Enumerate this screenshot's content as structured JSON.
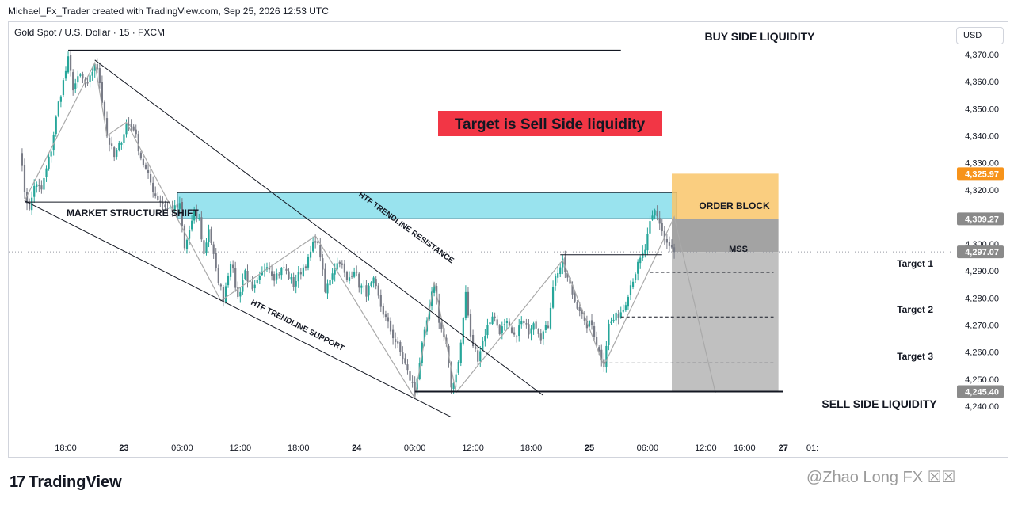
{
  "header": {
    "attribution": "Michael_Fx_Trader created with TradingView.com, Sep 25, 2026 12:53 UTC",
    "symbol": "Gold Spot / U.S. Dollar · 15 · FXCM",
    "currency": "USD"
  },
  "footer": {
    "brand": "TradingView",
    "watermark": "@Zhao Long FX ☒☒"
  },
  "colors": {
    "up": "#26a69a",
    "down": "#787b86",
    "order_block": "#7fdcea",
    "target_box": "#f9c66a",
    "stop_box": "#9e9e9e",
    "sell_box": "#bdbdbd",
    "headline_bg": "#f23645",
    "badge_orange": "#f7931a",
    "badge_gray": "#8a8a8a"
  },
  "chart_data": {
    "type": "candlestick",
    "instrument": "Gold Spot / U.S. Dollar",
    "timeframe": "15",
    "ylim": [
      4236,
      4378
    ],
    "y_ticks": [
      4240,
      4250,
      4260,
      4270,
      4280,
      4290,
      4300,
      4310,
      4320,
      4330,
      4340,
      4350,
      4360,
      4370
    ],
    "y_tick_labels": [
      "4,240.00",
      "4,250.00",
      "4,260.00",
      "4,270.00",
      "4,280.00",
      "4,290.00",
      "4,300.00",
      "4,310.00",
      "4,320.00",
      "4,330.00",
      "4,340.00",
      "4,350.00",
      "4,360.00",
      "4,370.00"
    ],
    "x_ticks": [
      {
        "label": "18:00",
        "bar": 0
      },
      {
        "label": "23",
        "bar": 24
      },
      {
        "label": "06:00",
        "bar": 48
      },
      {
        "label": "12:00",
        "bar": 72
      },
      {
        "label": "18:00",
        "bar": 96
      },
      {
        "label": "24",
        "bar": 120
      },
      {
        "label": "06:00",
        "bar": 144
      },
      {
        "label": "12:00",
        "bar": 168
      },
      {
        "label": "18:00",
        "bar": 192
      },
      {
        "label": "25",
        "bar": 216
      },
      {
        "label": "06:00",
        "bar": 240
      },
      {
        "label": "12:00",
        "bar": 264
      },
      {
        "label": "16:00",
        "bar": 280
      },
      {
        "label": "27",
        "bar": 296
      },
      {
        "label": "01:",
        "bar": 308
      }
    ],
    "price_badges": [
      {
        "value": "4,325.97",
        "price": 4325.97,
        "style": "orange"
      },
      {
        "value": "4,309.27",
        "price": 4309.27,
        "style": "gray"
      },
      {
        "value": "4,297.07",
        "price": 4297.07,
        "style": "gray"
      },
      {
        "value": "4,245.40",
        "price": 4245.4,
        "style": "gray"
      }
    ],
    "current_price": 4297.07,
    "waypoints": [
      [
        -19,
        4335
      ],
      [
        -17,
        4320
      ],
      [
        -15,
        4312
      ],
      [
        -13,
        4322
      ],
      [
        -10,
        4320
      ],
      [
        -6,
        4335
      ],
      [
        -3,
        4352
      ],
      [
        -1,
        4360
      ],
      [
        1,
        4368
      ],
      [
        3,
        4358
      ],
      [
        6,
        4362
      ],
      [
        9,
        4358
      ],
      [
        12,
        4367
      ],
      [
        14,
        4360
      ],
      [
        17,
        4340
      ],
      [
        20,
        4332
      ],
      [
        22,
        4336
      ],
      [
        25,
        4344
      ],
      [
        28,
        4343
      ],
      [
        31,
        4332
      ],
      [
        34,
        4325
      ],
      [
        37,
        4318
      ],
      [
        40,
        4315
      ],
      [
        42,
        4313
      ],
      [
        45,
        4313
      ],
      [
        47,
        4314
      ],
      [
        49,
        4298
      ],
      [
        51,
        4305
      ],
      [
        53,
        4311
      ],
      [
        55,
        4309
      ],
      [
        57,
        4296
      ],
      [
        59,
        4306
      ],
      [
        62,
        4290
      ],
      [
        65,
        4280
      ],
      [
        68,
        4294
      ],
      [
        71,
        4280
      ],
      [
        74,
        4290
      ],
      [
        77,
        4282
      ],
      [
        80,
        4287
      ],
      [
        83,
        4293
      ],
      [
        86,
        4288
      ],
      [
        90,
        4291
      ],
      [
        94,
        4285
      ],
      [
        97,
        4290
      ],
      [
        100,
        4294
      ],
      [
        103,
        4302
      ],
      [
        105,
        4296
      ],
      [
        107,
        4282
      ],
      [
        110,
        4290
      ],
      [
        113,
        4294
      ],
      [
        116,
        4286
      ],
      [
        119,
        4291
      ],
      [
        121,
        4285
      ],
      [
        124,
        4282
      ],
      [
        127,
        4286
      ],
      [
        130,
        4277
      ],
      [
        133,
        4270
      ],
      [
        136,
        4264
      ],
      [
        139,
        4258
      ],
      [
        142,
        4250
      ],
      [
        144,
        4246
      ],
      [
        147,
        4262
      ],
      [
        150,
        4276
      ],
      [
        152,
        4286
      ],
      [
        154,
        4272
      ],
      [
        157,
        4262
      ],
      [
        159,
        4247
      ],
      [
        161,
        4252
      ],
      [
        163,
        4263
      ],
      [
        165,
        4282
      ],
      [
        167,
        4265
      ],
      [
        170,
        4258
      ],
      [
        173,
        4267
      ],
      [
        176,
        4274
      ],
      [
        179,
        4268
      ],
      [
        182,
        4270
      ],
      [
        185,
        4265
      ],
      [
        188,
        4271
      ],
      [
        191,
        4268
      ],
      [
        193,
        4272
      ],
      [
        196,
        4266
      ],
      [
        199,
        4270
      ],
      [
        201,
        4285
      ],
      [
        203,
        4290
      ],
      [
        205,
        4293
      ],
      [
        207,
        4287
      ],
      [
        210,
        4279
      ],
      [
        212,
        4276
      ],
      [
        214,
        4270
      ],
      [
        217,
        4270
      ],
      [
        220,
        4260
      ],
      [
        222,
        4256
      ],
      [
        224,
        4270
      ],
      [
        227,
        4273
      ],
      [
        230,
        4276
      ],
      [
        233,
        4285
      ],
      [
        236,
        4292
      ],
      [
        239,
        4298
      ],
      [
        241,
        4307
      ],
      [
        243,
        4312
      ],
      [
        245,
        4308
      ],
      [
        247,
        4302
      ],
      [
        249,
        4299
      ],
      [
        251,
        4297
      ]
    ],
    "zones": [
      {
        "name": "ORDER BLOCK",
        "from_bar": 46,
        "to_bar": 252,
        "low": 4309.3,
        "high": 4319.0
      },
      {
        "name": "target",
        "from_bar": 250,
        "to_bar": 294,
        "low": 4309.27,
        "high": 4325.97
      },
      {
        "name": "stop",
        "from_bar": 250,
        "to_bar": 294,
        "low": 4297.07,
        "high": 4309.27
      },
      {
        "name": "sell",
        "from_bar": 250,
        "to_bar": 294,
        "low": 4245.4,
        "high": 4297.07
      }
    ],
    "levels": [
      {
        "label": "BUY SIDE LIQUIDITY",
        "price": 4371.5,
        "from_bar": 1,
        "to_bar": 229,
        "style": "solid"
      },
      {
        "label": "MARKET STRUCTURE SHIFT",
        "price": 4315.5,
        "from_bar": -17,
        "to_bar": 43,
        "style": "solid"
      },
      {
        "label": "SELL SIDE LIQUIDITY",
        "price": 4245.4,
        "from_bar": 144,
        "to_bar": 296,
        "style": "solid"
      },
      {
        "label": "MSS",
        "price": 4296,
        "from_bar": 204,
        "to_bar": 246,
        "style": "solid"
      },
      {
        "label": "Target 1",
        "price": 4289.5,
        "from_bar": 241,
        "to_bar": 292,
        "style": "dashed"
      },
      {
        "label": "Target 2",
        "price": 4273,
        "from_bar": 229,
        "to_bar": 292,
        "style": "dashed"
      },
      {
        "label": "Target 3",
        "price": 4256,
        "from_bar": 222,
        "to_bar": 292,
        "style": "dashed"
      }
    ],
    "trendlines": [
      {
        "label": "HTF TRENDLINE RESISTANCE",
        "points": [
          [
            12,
            4368
          ],
          [
            197,
            4244
          ]
        ]
      },
      {
        "label": "HTF TRENDLINE SUPPORT",
        "points": [
          [
            -17,
            4316
          ],
          [
            159,
            4236
          ]
        ]
      }
    ],
    "zigzag": [
      [
        -17,
        4316
      ],
      [
        12,
        4367
      ],
      [
        17,
        4340
      ],
      [
        25,
        4345
      ],
      [
        64,
        4279
      ],
      [
        103,
        4303
      ],
      [
        144,
        4243
      ],
      [
        152,
        4286
      ],
      [
        161,
        4245
      ],
      [
        205,
        4294
      ],
      [
        222,
        4255
      ],
      [
        251,
        4310
      ],
      [
        268,
        4245
      ]
    ],
    "headline": "Target is Sell Side liquidity"
  }
}
